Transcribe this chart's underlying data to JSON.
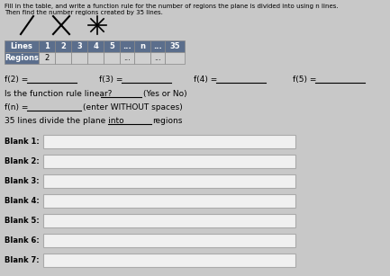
{
  "title": "Fill in the table, and write a function rule for the number of regions the plane is divided into using n lines. Then find the number regions created by 35 lines.",
  "bg_color": "#c8c8c8",
  "content_bg": "#e8e8e8",
  "table_header": [
    "Lines",
    "1",
    "2",
    "3",
    "4",
    "5",
    "...",
    "n",
    "...",
    "35"
  ],
  "table_row2": [
    "Regions",
    "2",
    "",
    "",
    "",
    "",
    "...",
    "",
    "...",
    ""
  ],
  "f_labels": [
    "f(2) =",
    "f(3) =",
    "f(4) =",
    "f(5) ="
  ],
  "question1": "Is the function rule linear?",
  "question1_hint": "(Yes or No)",
  "question2_label": "f(n) =",
  "question2_hint": "(enter WITHOUT spaces)",
  "question3": "35 lines divide the plane into",
  "question3_end": "regions",
  "blanks": [
    "Blank 1:",
    "Blank 2:",
    "Blank 3:",
    "Blank 4:",
    "Blank 5:",
    "Blank 6:",
    "Blank 7:"
  ],
  "input_box_color": "#f0f0f0",
  "input_box_border": "#aaaaaa",
  "header_bg": "#5b6e8c",
  "header_text": "#ffffff",
  "row2_bg": "#5b6e8c",
  "row2_text": "#ffffff",
  "cell_bg": "#d0d0d0",
  "cell_text": "#000000",
  "font_size_title": 5.0,
  "font_size_text": 6.5,
  "font_size_small": 6.0,
  "font_size_blank_label": 6.0
}
